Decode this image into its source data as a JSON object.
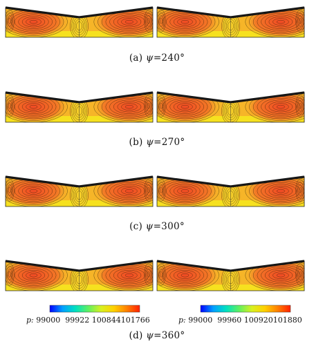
{
  "captions": [
    {
      "label": "(a)",
      "symbol": "ψ",
      "value": "=240°"
    },
    {
      "label": "(b)",
      "symbol": "ψ",
      "value": "=270°"
    },
    {
      "label": "(c)",
      "symbol": "ψ",
      "value": "=300°"
    },
    {
      "label": "(d)",
      "symbol": "ψ",
      "value": "=360°"
    }
  ],
  "legends": [
    {
      "var": "p:",
      "ticks": "99000  99922 100844101766"
    },
    {
      "var": "p:",
      "ticks": "99000  99960 100920101880"
    }
  ],
  "colors": {
    "wing_fill_hot": "#f04a24",
    "wing_fill_mid": "#f6b528",
    "wing_fill_cool": "#f6e61e",
    "leading_edge": "#111111",
    "contour_line": "#2a1e0a",
    "colorbar": [
      "#0000ff",
      "#00a0ff",
      "#00e0c0",
      "#60f060",
      "#d8f020",
      "#ffd000",
      "#ff8000",
      "#ff2000"
    ]
  }
}
